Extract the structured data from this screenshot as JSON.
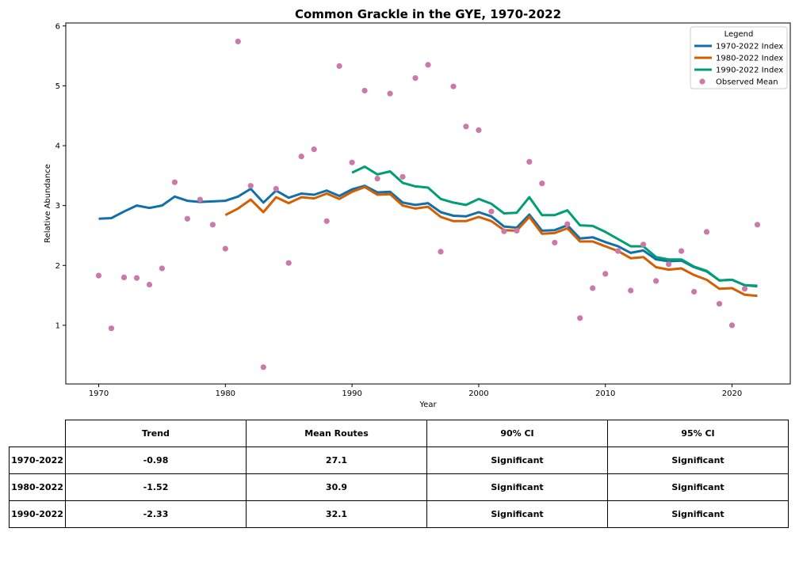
{
  "chart_data": {
    "type": "line",
    "title": "Common Grackle in the GYE, 1970-2022",
    "xlabel": "Year",
    "ylabel": "Relative Abundance",
    "xlim": [
      1967.4,
      2024.6
    ],
    "ylim": [
      0.02,
      6.05
    ],
    "xticks": [
      1970,
      1980,
      1990,
      2000,
      2010,
      2020
    ],
    "yticks": [
      1,
      2,
      3,
      4,
      5,
      6
    ],
    "grid": false,
    "legend": {
      "title": "Legend",
      "placement": "top-right",
      "entries": [
        "1970-2022 Index",
        "1980-2022 Index",
        "1990-2022 Index",
        "Observed Mean"
      ]
    },
    "series": [
      {
        "name": "1970-2022 Index",
        "color": "#1170aa",
        "x": [
          1970,
          1971,
          1972,
          1973,
          1974,
          1975,
          1976,
          1977,
          1978,
          1979,
          1980,
          1981,
          1982,
          1983,
          1984,
          1985,
          1986,
          1987,
          1988,
          1989,
          1990,
          1991,
          1992,
          1993,
          1994,
          1995,
          1996,
          1997,
          1998,
          1999,
          2000,
          2001,
          2002,
          2003,
          2004,
          2005,
          2006,
          2007,
          2008,
          2009,
          2010,
          2011,
          2012,
          2013,
          2014,
          2015,
          2016,
          2017,
          2018,
          2019,
          2020,
          2021,
          2022
        ],
        "y": [
          2.78,
          2.79,
          2.9,
          3.0,
          2.96,
          3.0,
          3.15,
          3.08,
          3.06,
          3.07,
          3.08,
          3.15,
          3.28,
          3.05,
          3.25,
          3.13,
          3.2,
          3.18,
          3.25,
          3.16,
          3.27,
          3.33,
          3.22,
          3.23,
          3.05,
          3.01,
          3.04,
          2.89,
          2.83,
          2.82,
          2.89,
          2.82,
          2.65,
          2.63,
          2.85,
          2.58,
          2.59,
          2.67,
          2.45,
          2.47,
          2.39,
          2.32,
          2.21,
          2.25,
          2.1,
          2.07,
          2.08,
          1.97,
          1.9,
          1.75,
          1.76,
          1.67,
          1.66
        ]
      },
      {
        "name": "1980-2022 Index",
        "color": "#d55e00",
        "x": [
          1980,
          1981,
          1982,
          1983,
          1984,
          1985,
          1986,
          1987,
          1988,
          1989,
          1990,
          1991,
          1992,
          1993,
          1994,
          1995,
          1996,
          1997,
          1998,
          1999,
          2000,
          2001,
          2002,
          2003,
          2004,
          2005,
          2006,
          2007,
          2008,
          2009,
          2010,
          2011,
          2012,
          2013,
          2014,
          2015,
          2016,
          2017,
          2018,
          2019,
          2020,
          2021,
          2022
        ],
        "y": [
          2.84,
          2.95,
          3.1,
          2.89,
          3.14,
          3.04,
          3.14,
          3.12,
          3.2,
          3.11,
          3.23,
          3.31,
          3.18,
          3.19,
          3.0,
          2.95,
          2.98,
          2.81,
          2.74,
          2.74,
          2.81,
          2.74,
          2.59,
          2.58,
          2.81,
          2.53,
          2.54,
          2.62,
          2.4,
          2.4,
          2.32,
          2.24,
          2.12,
          2.14,
          1.97,
          1.93,
          1.95,
          1.84,
          1.76,
          1.61,
          1.62,
          1.51,
          1.49
        ]
      },
      {
        "name": "1990-2022 Index",
        "color": "#009e73",
        "x": [
          1990,
          1991,
          1992,
          1993,
          1994,
          1995,
          1996,
          1997,
          1998,
          1999,
          2000,
          2001,
          2002,
          2003,
          2004,
          2005,
          2006,
          2007,
          2008,
          2009,
          2010,
          2011,
          2012,
          2013,
          2014,
          2015,
          2016,
          2017,
          2018,
          2019,
          2020,
          2021,
          2022
        ],
        "y": [
          3.55,
          3.65,
          3.52,
          3.57,
          3.38,
          3.32,
          3.3,
          3.11,
          3.05,
          3.01,
          3.11,
          3.03,
          2.87,
          2.88,
          3.14,
          2.84,
          2.84,
          2.92,
          2.67,
          2.66,
          2.56,
          2.44,
          2.32,
          2.32,
          2.14,
          2.1,
          2.1,
          1.98,
          1.91,
          1.75,
          1.76,
          1.67,
          1.65
        ]
      }
    ],
    "scatter": {
      "name": "Observed Mean",
      "color": "#cc79a7",
      "x": [
        1970,
        1971,
        1972,
        1973,
        1974,
        1975,
        1976,
        1977,
        1978,
        1979,
        1980,
        1981,
        1982,
        1983,
        1984,
        1985,
        1986,
        1987,
        1988,
        1989,
        1990,
        1991,
        1992,
        1993,
        1994,
        1995,
        1996,
        1997,
        1998,
        1999,
        2000,
        2001,
        2002,
        2003,
        2004,
        2005,
        2006,
        2007,
        2008,
        2009,
        2010,
        2011,
        2012,
        2013,
        2014,
        2015,
        2016,
        2017,
        2018,
        2019,
        2020,
        2021,
        2022
      ],
      "y": [
        1.83,
        0.95,
        1.8,
        1.79,
        1.68,
        1.95,
        3.39,
        2.78,
        3.1,
        2.68,
        2.28,
        5.74,
        3.33,
        0.3,
        3.28,
        2.04,
        3.82,
        3.94,
        2.74,
        5.33,
        3.72,
        4.92,
        3.45,
        4.87,
        3.48,
        5.13,
        5.35,
        2.23,
        4.99,
        4.32,
        4.26,
        2.9,
        2.57,
        2.58,
        3.73,
        3.37,
        2.38,
        2.69,
        1.12,
        1.62,
        1.86,
        2.24,
        1.58,
        2.35,
        1.74,
        2.02,
        2.24,
        1.56,
        2.56,
        1.36,
        1.0,
        1.61,
        2.68
      ]
    }
  },
  "table": {
    "headers": [
      "Trend",
      "Mean Routes",
      "90% CI",
      "95% CI"
    ],
    "rows": [
      {
        "label": "1970-2022",
        "trend": "-0.98",
        "mean_routes": "27.1",
        "ci90": "Significant",
        "ci95": "Significant"
      },
      {
        "label": "1980-2022",
        "trend": "-1.52",
        "mean_routes": "30.9",
        "ci90": "Significant",
        "ci95": "Significant"
      },
      {
        "label": "1990-2022",
        "trend": "-2.33",
        "mean_routes": "32.1",
        "ci90": "Significant",
        "ci95": "Significant"
      }
    ]
  }
}
